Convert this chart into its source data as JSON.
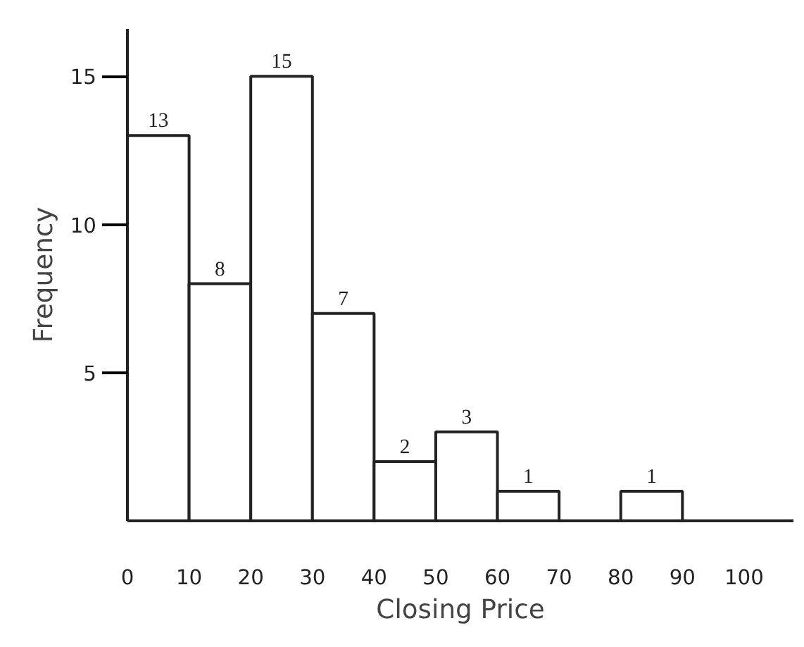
{
  "chart_data": {
    "type": "histogram",
    "xlabel": "Closing Price",
    "ylabel": "Frequency",
    "bins": [
      0,
      10,
      20,
      30,
      40,
      50,
      60,
      70,
      80,
      90
    ],
    "values": [
      13,
      8,
      15,
      7,
      2,
      3,
      1,
      0,
      1
    ],
    "value_labels": [
      "13",
      "8",
      "15",
      "7",
      "2",
      "3",
      "1",
      null,
      "1"
    ],
    "color": "#ffffff",
    "xlim": [
      0,
      108
    ],
    "ylim": [
      0,
      16.6
    ],
    "xticks": [
      0,
      10,
      20,
      30,
      40,
      50,
      60,
      70,
      80,
      90,
      100
    ],
    "yticks": [
      5,
      10,
      15
    ],
    "grid": false
  }
}
